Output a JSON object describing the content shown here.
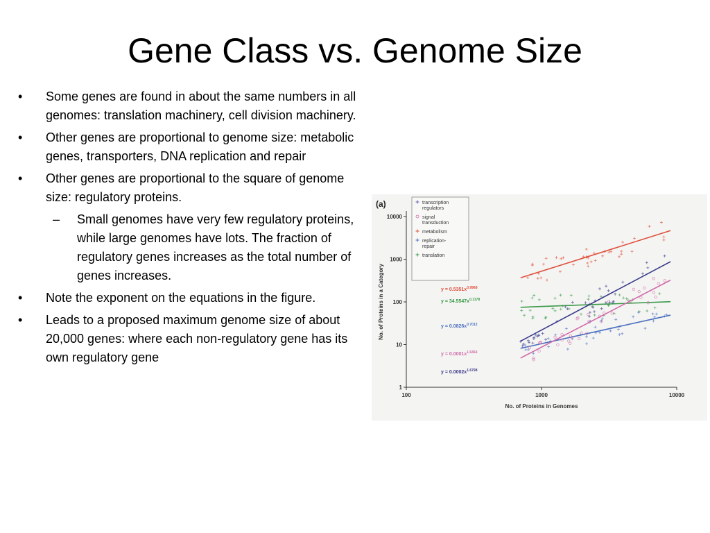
{
  "slide": {
    "title": "Gene Class vs. Genome Size",
    "bullets": [
      {
        "level": 1,
        "marker": "•",
        "text": "Some genes are found in about the same numbers in all genomes: translation machinery, cell division machinery."
      },
      {
        "level": 1,
        "marker": "•",
        "text": "Other genes are proportional to genome size: metabolic genes, transporters, DNA replication and repair"
      },
      {
        "level": 1,
        "marker": "•",
        "text": "Other genes are proportional to the square of genome size: regulatory proteins."
      },
      {
        "level": 2,
        "marker": "–",
        "text": "Small genomes have very few regulatory proteins, while large genomes have lots. The fraction of regulatory genes increases as the total number of genes increases."
      },
      {
        "level": 1,
        "marker": "•",
        "text": "Note the exponent on the equations in the figure."
      },
      {
        "level": 1,
        "marker": "•",
        "text": "Leads to a proposed maximum genome size of about 20,000 genes: where each non-regulatory gene has its own regulatory gene"
      }
    ]
  },
  "chart_data": {
    "type": "scatter",
    "panel_label": "(a)",
    "xlabel": "No. of Proteins in Genomes",
    "ylabel": "No. of Proteins in a Category",
    "x_scale": "log",
    "y_scale": "log",
    "xlim": [
      100,
      10000
    ],
    "ylim": [
      1,
      10000
    ],
    "x_ticks": [
      100,
      1000,
      10000
    ],
    "x_tick_labels": [
      "100",
      "1000",
      "10000"
    ],
    "y_ticks": [
      1,
      10,
      100,
      1000,
      10000
    ],
    "y_tick_labels": [
      "1",
      "10",
      "100",
      "1000",
      "10000"
    ],
    "legend_position": "top-left",
    "legend": [
      {
        "label": "transcription regulators",
        "color": "#6a5fb0",
        "symbol": "+"
      },
      {
        "label": "signal transduction",
        "color": "#d06aa8",
        "symbol": "o"
      },
      {
        "label": "metabolism",
        "color": "#e0503c",
        "symbol": "+"
      },
      {
        "label": "replication-repair",
        "color": "#4a6fc0",
        "symbol": "+"
      },
      {
        "label": "translation",
        "color": "#3a9a4a",
        "symbol": "+"
      }
    ],
    "equations": [
      {
        "text": "y = 0.5351x",
        "exponent": "0.9968",
        "color": "#e0503c"
      },
      {
        "text": "y = 34.5547x",
        "exponent": "0.1178",
        "color": "#3a9a4a"
      },
      {
        "text": "y = 0.0826x",
        "exponent": "0.7012",
        "color": "#4a6fc0"
      },
      {
        "text": "y = 0.0001x",
        "exponent": "1.6464",
        "color": "#d06aa8"
      },
      {
        "text": "y = 0.0002x",
        "exponent": "1.6798",
        "color": "#3a3a8a"
      }
    ],
    "series": [
      {
        "color": "#e0503c",
        "coef": 0.5351,
        "exp": 0.9968,
        "x_range": [
          700,
          9000
        ],
        "symbol": "+"
      },
      {
        "color": "#3a9a4a",
        "coef": 34.5547,
        "exp": 0.1178,
        "x_range": [
          700,
          9000
        ],
        "symbol": "+"
      },
      {
        "color": "#4a6fc0",
        "coef": 0.0826,
        "exp": 0.7012,
        "x_range": [
          700,
          9000
        ],
        "symbol": "+"
      },
      {
        "color": "#d06aa8",
        "coef": 0.0001,
        "exp": 1.6464,
        "x_range": [
          700,
          9000
        ],
        "symbol": "o"
      },
      {
        "color": "#3a3a8a",
        "coef": 0.0002,
        "exp": 1.6798,
        "x_range": [
          700,
          9000
        ],
        "symbol": "+"
      }
    ]
  }
}
